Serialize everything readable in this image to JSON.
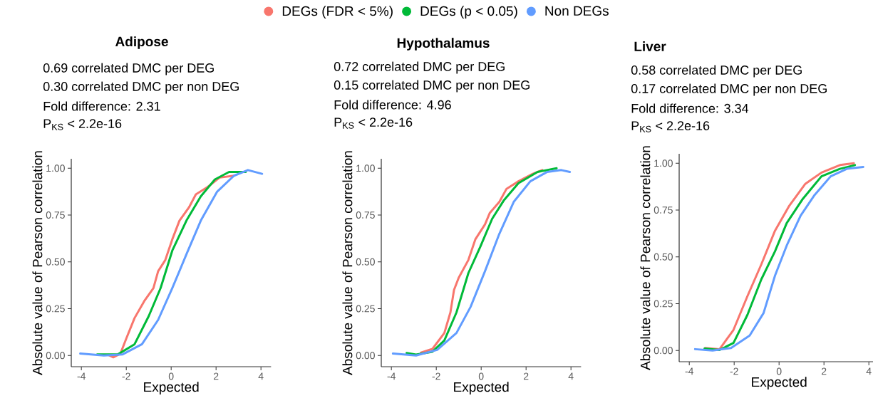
{
  "chart_data": [
    {
      "type": "line",
      "title": "Adipose",
      "annotations": [
        "0.69 correlated DMC per DEG",
        "0.30 correlated DMC per non DEG",
        "Fold difference: 2.31",
        "P$_{KS}$ < 2.2e-16"
      ],
      "xlabel": "Expected",
      "ylabel": "Absolute value of Pearson correlation",
      "xlim": [
        -4.45,
        4.45
      ],
      "ylim": [
        -0.06,
        1.05
      ],
      "xticks": [
        -4,
        -2,
        0,
        2,
        4
      ],
      "yticks": [
        {
          "value": 0,
          "label": "0.00"
        },
        {
          "value": 0.25,
          "label": "0.25"
        },
        {
          "value": 0.5,
          "label": "0.50"
        },
        {
          "value": 0.75,
          "label": "0.75"
        },
        {
          "value": 1,
          "label": "1.00"
        }
      ],
      "series": [
        {
          "color": "#f8766d",
          "x": [
            -2.8,
            -2.58,
            -2.26,
            -2.0,
            -1.63,
            -1.2,
            -0.79,
            -0.58,
            -0.26,
            0.05,
            0.37,
            0.79,
            1.1,
            1.63,
            2.16,
            2.8
          ],
          "values": [
            0.003,
            -0.01,
            0.01,
            0.09,
            0.2,
            0.29,
            0.36,
            0.45,
            0.51,
            0.62,
            0.72,
            0.79,
            0.86,
            0.9,
            0.95,
            0.96
          ]
        },
        {
          "color": "#00ba38",
          "x": [
            -3.3,
            -2.37,
            -1.63,
            -1.0,
            -0.47,
            0.05,
            0.68,
            1.32,
            1.95,
            2.58,
            3.32
          ],
          "values": [
            0.006,
            0.006,
            0.06,
            0.21,
            0.36,
            0.56,
            0.72,
            0.85,
            0.94,
            0.98,
            0.98
          ]
        },
        {
          "color": "#619cff",
          "x": [
            -4.05,
            -3.0,
            -2.16,
            -1.3,
            -0.58,
            0.05,
            0.68,
            1.32,
            2.05,
            2.8,
            3.42,
            4.05
          ],
          "values": [
            0.01,
            0.0,
            0.006,
            0.06,
            0.19,
            0.36,
            0.54,
            0.72,
            0.875,
            0.96,
            0.99,
            0.97
          ]
        }
      ]
    },
    {
      "type": "line",
      "title": "Hypothalamus",
      "annotations": [
        "0.72 correlated DMC per DEG",
        "0.15 correlated DMC per non DEG",
        "Fold difference: 4.96",
        "P$_{KS}$ < 2.2e-16"
      ],
      "xlabel": "Expected",
      "ylabel": "Absolute value of Pearson correlation",
      "xlim": [
        -4.45,
        4.45
      ],
      "ylim": [
        -0.06,
        1.05
      ],
      "xticks": [
        -4,
        -2,
        0,
        2,
        4
      ],
      "yticks": [
        {
          "value": 0,
          "label": "0.00"
        },
        {
          "value": 0.25,
          "label": "0.25"
        },
        {
          "value": 0.5,
          "label": "0.50"
        },
        {
          "value": 0.75,
          "label": "0.75"
        },
        {
          "value": 1,
          "label": "1.00"
        }
      ],
      "legend": "top",
      "series": [
        {
          "name": "DEGs (FDR < 5%)",
          "color": "#f8766d",
          "x": [
            -2.68,
            -2.17,
            -1.64,
            -1.37,
            -1.21,
            -1.0,
            -0.57,
            -0.26,
            0.17,
            0.38,
            0.81,
            1.13,
            1.66,
            2.3,
            2.72
          ],
          "values": [
            0.015,
            0.035,
            0.12,
            0.23,
            0.35,
            0.415,
            0.51,
            0.62,
            0.7,
            0.76,
            0.82,
            0.89,
            0.93,
            0.97,
            0.99
          ]
        },
        {
          "name": "DEGs (p < 0.05)",
          "color": "#00ba38",
          "x": [
            -3.32,
            -2.9,
            -2.17,
            -1.64,
            -1.1,
            -0.57,
            -0.04,
            0.49,
            1.02,
            1.66,
            2.51,
            3.36
          ],
          "values": [
            0.013,
            0.005,
            0.02,
            0.08,
            0.23,
            0.44,
            0.58,
            0.73,
            0.83,
            0.92,
            0.98,
            1.0
          ]
        },
        {
          "name": "Non DEGs",
          "color": "#619cff",
          "x": [
            -3.93,
            -2.9,
            -1.96,
            -1.1,
            -0.47,
            0.17,
            0.81,
            1.45,
            2.19,
            2.94,
            3.57,
            3.95
          ],
          "values": [
            0.01,
            0.0,
            0.03,
            0.12,
            0.26,
            0.45,
            0.65,
            0.82,
            0.93,
            0.98,
            0.99,
            0.98
          ]
        }
      ]
    },
    {
      "type": "line",
      "title": "Liver",
      "annotations": [
        "0.58 correlated DMC per DEG",
        "0.17 correlated DMC per non DEG",
        "Fold difference: 3.34",
        "P$_{KS}$ < 2.2e-16"
      ],
      "xlabel": "Expected",
      "ylabel": "Absolute value of Pearson correlation",
      "xlim": [
        -4.45,
        4.45
      ],
      "ylim": [
        -0.06,
        1.05
      ],
      "xticks": [
        -4,
        -2,
        0,
        2,
        4
      ],
      "yticks": [
        {
          "value": 0,
          "label": "0.00"
        },
        {
          "value": 0.25,
          "label": "0.25"
        },
        {
          "value": 0.5,
          "label": "0.50"
        },
        {
          "value": 0.75,
          "label": "0.75"
        },
        {
          "value": 1,
          "label": "1.00"
        }
      ],
      "series": [
        {
          "color": "#f8766d",
          "x": [
            -3.29,
            -2.65,
            -2.03,
            -1.41,
            -0.79,
            -0.18,
            0.44,
            1.17,
            1.89,
            2.71,
            3.33
          ],
          "values": [
            0.013,
            0.007,
            0.11,
            0.29,
            0.46,
            0.64,
            0.77,
            0.89,
            0.95,
            0.99,
            1.0
          ]
        },
        {
          "color": "#00ba38",
          "x": [
            -3.32,
            -2.65,
            -2.03,
            -1.41,
            -0.79,
            -0.18,
            0.34,
            1.06,
            1.89,
            2.71,
            3.38
          ],
          "values": [
            0.01,
            0.003,
            0.04,
            0.19,
            0.38,
            0.53,
            0.68,
            0.81,
            0.93,
            0.97,
            0.99
          ]
        },
        {
          "color": "#619cff",
          "x": [
            -3.74,
            -2.96,
            -2.14,
            -1.31,
            -0.69,
            -0.18,
            0.34,
            0.96,
            1.58,
            2.3,
            3.02,
            3.75
          ],
          "values": [
            0.007,
            0.0,
            0.013,
            0.08,
            0.2,
            0.4,
            0.56,
            0.72,
            0.83,
            0.93,
            0.97,
            0.98
          ]
        }
      ]
    }
  ]
}
